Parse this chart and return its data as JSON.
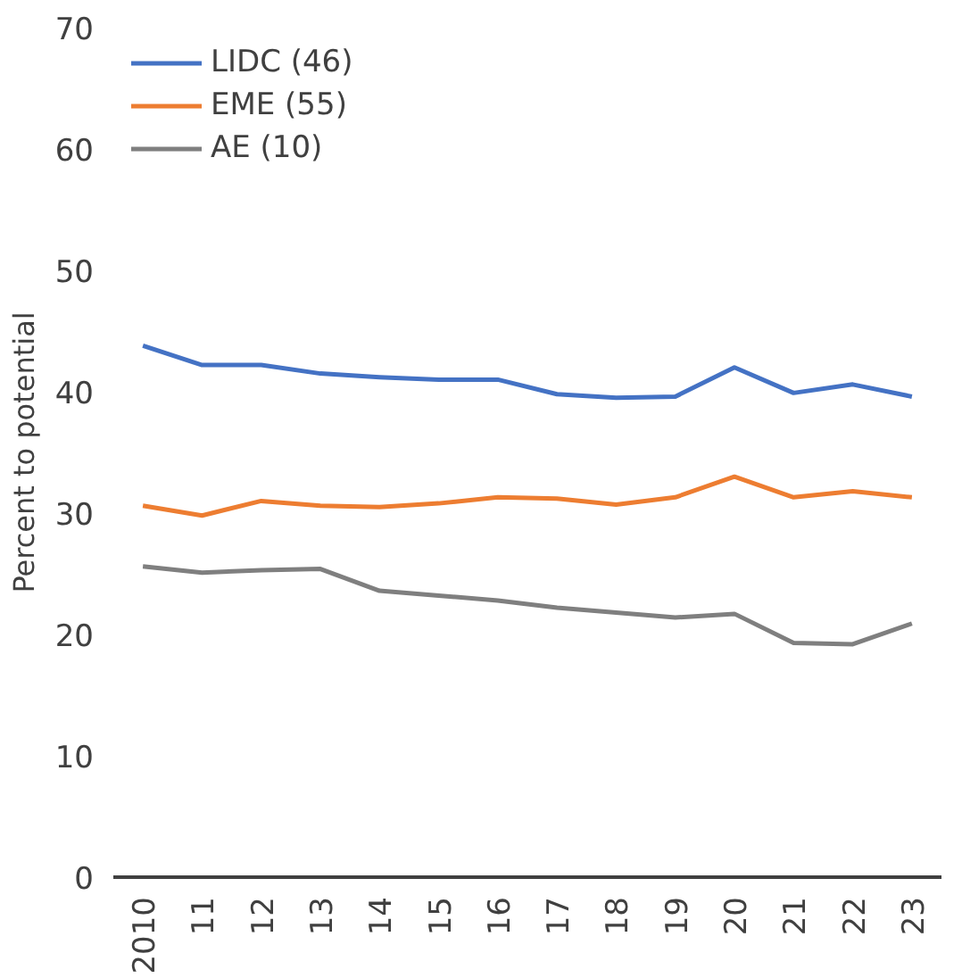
{
  "chart_data": {
    "type": "line",
    "ylabel": "Percent to potential",
    "categories": [
      "2010",
      "11",
      "12",
      "13",
      "14",
      "15",
      "16",
      "17",
      "18",
      "19",
      "20",
      "21",
      "22",
      "23"
    ],
    "series": [
      {
        "name": "LIDC (46)",
        "color": "#4472c4",
        "values": [
          43.8,
          42.2,
          42.2,
          41.5,
          41.2,
          41.0,
          41.0,
          39.8,
          39.5,
          39.6,
          42.0,
          39.9,
          40.6,
          39.6
        ]
      },
      {
        "name": "EME (55)",
        "color": "#ed7d31",
        "values": [
          30.6,
          29.8,
          31.0,
          30.6,
          30.5,
          30.8,
          31.3,
          31.2,
          30.7,
          31.3,
          33.0,
          31.3,
          31.8,
          31.3
        ]
      },
      {
        "name": "AE (10)",
        "color": "#7f7f7f",
        "values": [
          25.6,
          25.1,
          25.3,
          25.4,
          23.6,
          23.2,
          22.8,
          22.2,
          21.8,
          21.4,
          21.7,
          19.3,
          19.2,
          20.9
        ]
      }
    ],
    "ylim": [
      0,
      70
    ],
    "yticks": [
      0,
      10,
      20,
      30,
      40,
      50,
      60,
      70
    ],
    "grid": false,
    "legend": "top left"
  }
}
